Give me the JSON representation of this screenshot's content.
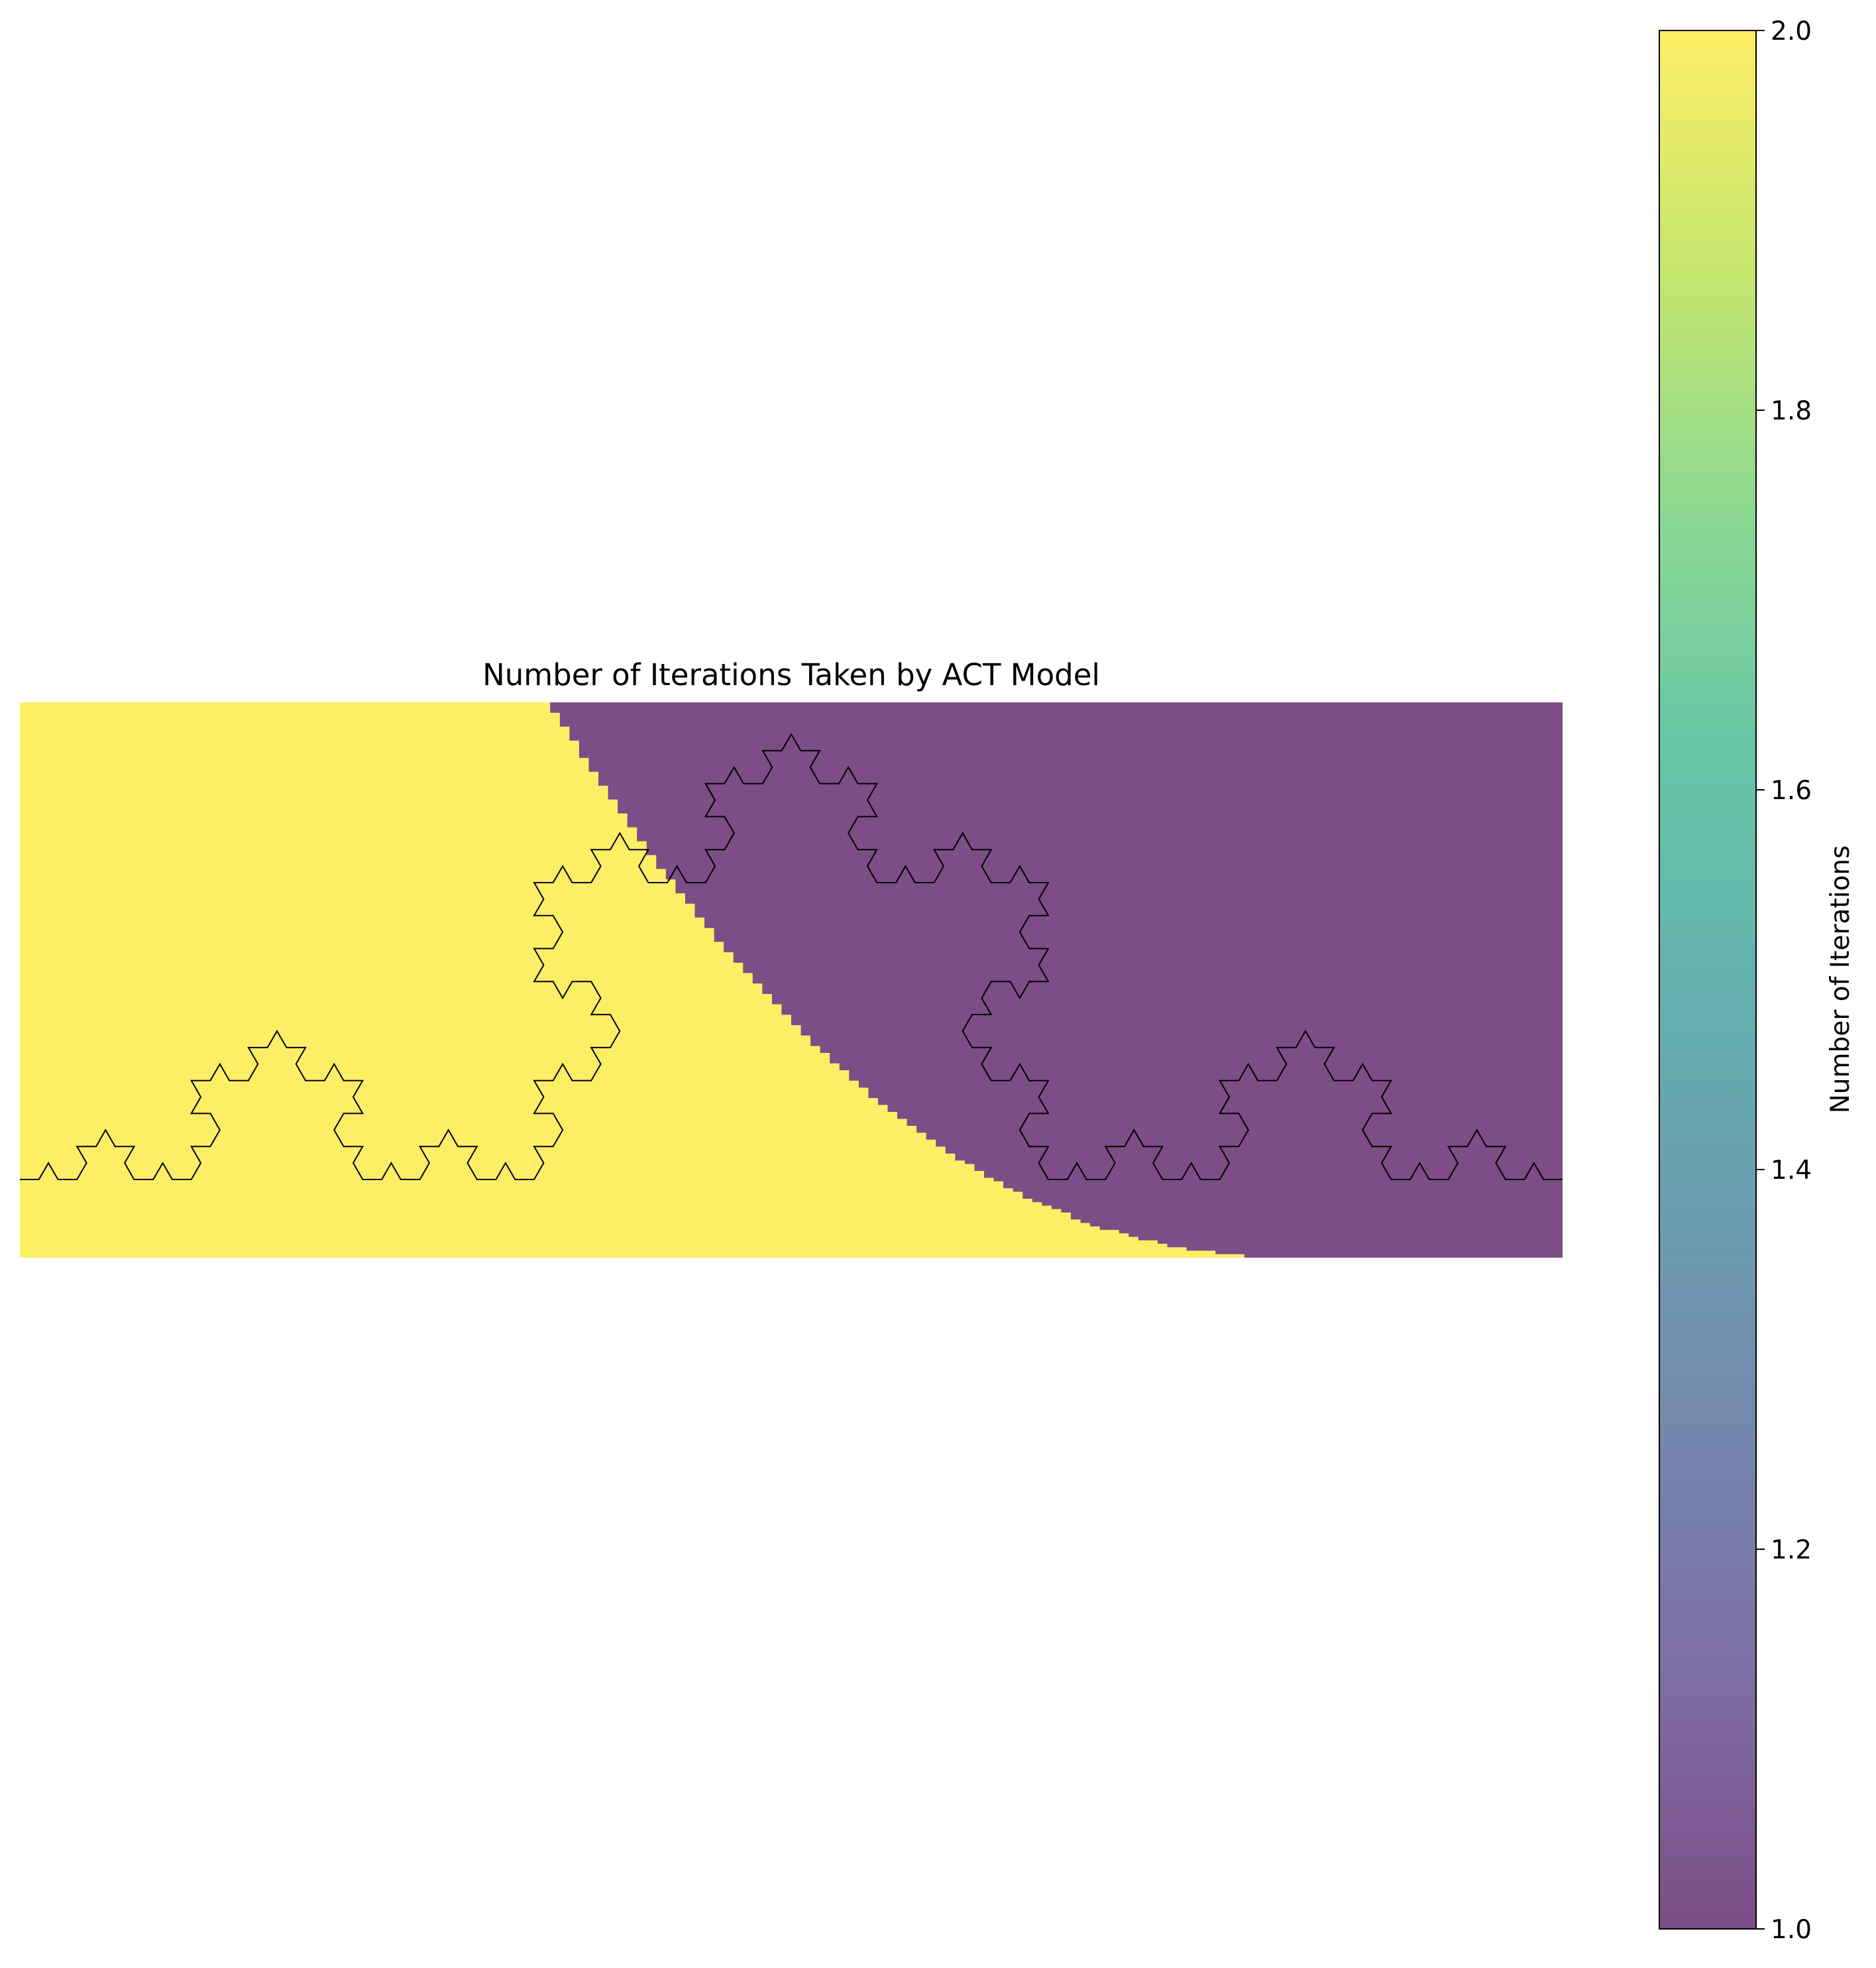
{
  "chart_data": {
    "type": "heatmap",
    "title": "Number of Iterations Taken by ACT Model",
    "colormap": "viridis",
    "alpha": 0.7,
    "value_range": [
      1.0,
      2.0
    ],
    "values_present": [
      1,
      2
    ],
    "colors": {
      "high_value_2": "#fde725",
      "low_value_1": "#440154",
      "outline": "#000000"
    },
    "regions": [
      {
        "value": 2,
        "location": "left and lower portion of the image"
      },
      {
        "value": 1,
        "location": "upper-right portion of the image"
      }
    ],
    "overlay": "Koch snowflake curve outline (black)",
    "colorbar": {
      "label": "Number of Iterations",
      "ticks": [
        "1.0",
        "1.2",
        "1.4",
        "1.6",
        "1.8",
        "2.0"
      ],
      "tick_values": [
        1.0,
        1.2,
        1.4,
        1.6,
        1.8,
        2.0
      ]
    },
    "axes_visible": false
  }
}
